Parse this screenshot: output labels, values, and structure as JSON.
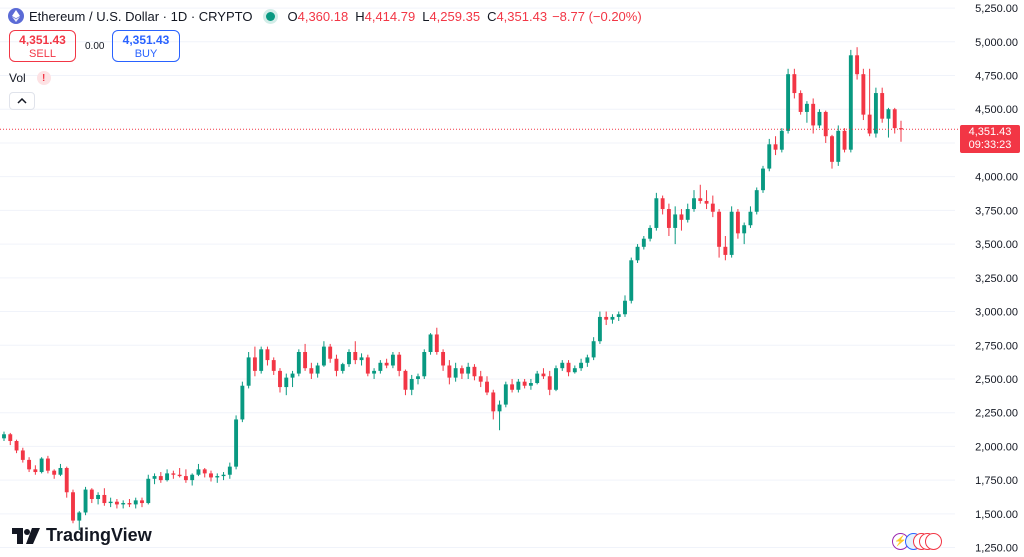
{
  "header": {
    "symbol": "Ethereum / U.S. Dollar · 1D · CRYPTO",
    "o_label": "O",
    "o_value": "4,360.18",
    "h_label": "H",
    "h_value": "4,414.79",
    "l_label": "L",
    "l_value": "4,259.35",
    "c_label": "C",
    "c_value": "4,351.43",
    "change": "−8.77 (−0.20%)",
    "status_color": "#089981",
    "coin_icon": "ethereum-icon"
  },
  "trade": {
    "sell_price": "4,351.43",
    "sell_label": "SELL",
    "spread": "0.00",
    "buy_price": "4,351.43",
    "buy_label": "BUY"
  },
  "indicator": {
    "label": "Vol",
    "warning": "!"
  },
  "price_tag": {
    "price": "4,351.43",
    "countdown": "09:33:23"
  },
  "brand": {
    "name": "TradingView"
  },
  "colors": {
    "up": "#089981",
    "down": "#f23645",
    "buy": "#2962ff"
  },
  "chart_data": {
    "type": "candlestick",
    "y_axis": {
      "ticks": [
        "5,250.00",
        "5,000.00",
        "4,750.00",
        "4,500.00",
        "4,250.00",
        "4,000.00",
        "3,750.00",
        "3,500.00",
        "3,250.00",
        "3,000.00",
        "2,750.00",
        "2,500.00",
        "2,250.00",
        "2,000.00",
        "1,750.00",
        "1,500.00",
        "1,250.00"
      ],
      "range": [
        1180,
        5310
      ],
      "position": "right"
    },
    "last_price": 4351.43,
    "candles": [
      [
        2060,
        2110,
        2040,
        2090
      ],
      [
        2090,
        2100,
        2010,
        2040
      ],
      [
        2040,
        2050,
        1950,
        1970
      ],
      [
        1970,
        1990,
        1880,
        1900
      ],
      [
        1900,
        1920,
        1810,
        1830
      ],
      [
        1830,
        1860,
        1790,
        1810
      ],
      [
        1810,
        1920,
        1800,
        1910
      ],
      [
        1910,
        1930,
        1800,
        1820
      ],
      [
        1820,
        1830,
        1760,
        1790
      ],
      [
        1790,
        1870,
        1780,
        1840
      ],
      [
        1840,
        1850,
        1620,
        1660
      ],
      [
        1660,
        1680,
        1430,
        1450
      ],
      [
        1450,
        1520,
        1380,
        1510
      ],
      [
        1510,
        1700,
        1490,
        1680
      ],
      [
        1680,
        1690,
        1580,
        1610
      ],
      [
        1610,
        1660,
        1570,
        1640
      ],
      [
        1640,
        1690,
        1560,
        1580
      ],
      [
        1580,
        1620,
        1550,
        1590
      ],
      [
        1590,
        1610,
        1540,
        1570
      ],
      [
        1570,
        1600,
        1540,
        1580
      ],
      [
        1580,
        1610,
        1550,
        1570
      ],
      [
        1570,
        1620,
        1540,
        1600
      ],
      [
        1600,
        1620,
        1550,
        1580
      ],
      [
        1580,
        1790,
        1570,
        1760
      ],
      [
        1760,
        1800,
        1720,
        1780
      ],
      [
        1780,
        1810,
        1730,
        1750
      ],
      [
        1750,
        1830,
        1740,
        1800
      ],
      [
        1800,
        1820,
        1760,
        1790
      ],
      [
        1790,
        1840,
        1770,
        1780
      ],
      [
        1780,
        1830,
        1730,
        1750
      ],
      [
        1750,
        1800,
        1710,
        1790
      ],
      [
        1790,
        1870,
        1780,
        1830
      ],
      [
        1830,
        1840,
        1770,
        1800
      ],
      [
        1800,
        1820,
        1740,
        1770
      ],
      [
        1770,
        1800,
        1730,
        1780
      ],
      [
        1780,
        1810,
        1750,
        1790
      ],
      [
        1790,
        1880,
        1760,
        1850
      ],
      [
        1850,
        2230,
        1830,
        2200
      ],
      [
        2200,
        2480,
        2180,
        2450
      ],
      [
        2450,
        2700,
        2430,
        2660
      ],
      [
        2660,
        2740,
        2520,
        2560
      ],
      [
        2560,
        2740,
        2540,
        2720
      ],
      [
        2720,
        2740,
        2600,
        2640
      ],
      [
        2640,
        2660,
        2530,
        2560
      ],
      [
        2560,
        2580,
        2400,
        2440
      ],
      [
        2440,
        2540,
        2380,
        2510
      ],
      [
        2510,
        2560,
        2440,
        2540
      ],
      [
        2540,
        2720,
        2520,
        2700
      ],
      [
        2700,
        2760,
        2560,
        2580
      ],
      [
        2580,
        2620,
        2500,
        2540
      ],
      [
        2540,
        2620,
        2510,
        2600
      ],
      [
        2600,
        2780,
        2590,
        2740
      ],
      [
        2740,
        2760,
        2620,
        2650
      ],
      [
        2650,
        2680,
        2520,
        2560
      ],
      [
        2560,
        2620,
        2540,
        2610
      ],
      [
        2610,
        2720,
        2590,
        2700
      ],
      [
        2700,
        2780,
        2610,
        2640
      ],
      [
        2640,
        2690,
        2600,
        2660
      ],
      [
        2660,
        2680,
        2520,
        2540
      ],
      [
        2540,
        2580,
        2500,
        2560
      ],
      [
        2560,
        2640,
        2540,
        2620
      ],
      [
        2620,
        2650,
        2580,
        2600
      ],
      [
        2600,
        2700,
        2580,
        2680
      ],
      [
        2680,
        2700,
        2520,
        2560
      ],
      [
        2560,
        2570,
        2380,
        2420
      ],
      [
        2420,
        2530,
        2380,
        2500
      ],
      [
        2500,
        2540,
        2460,
        2520
      ],
      [
        2520,
        2720,
        2500,
        2700
      ],
      [
        2700,
        2840,
        2680,
        2830
      ],
      [
        2830,
        2880,
        2680,
        2700
      ],
      [
        2700,
        2720,
        2560,
        2600
      ],
      [
        2600,
        2640,
        2460,
        2510
      ],
      [
        2510,
        2620,
        2480,
        2580
      ],
      [
        2580,
        2600,
        2500,
        2540
      ],
      [
        2540,
        2620,
        2500,
        2590
      ],
      [
        2590,
        2610,
        2490,
        2520
      ],
      [
        2520,
        2560,
        2440,
        2480
      ],
      [
        2480,
        2520,
        2380,
        2400
      ],
      [
        2400,
        2420,
        2200,
        2260
      ],
      [
        2260,
        2340,
        2120,
        2310
      ],
      [
        2310,
        2480,
        2290,
        2460
      ],
      [
        2460,
        2500,
        2400,
        2420
      ],
      [
        2420,
        2500,
        2400,
        2480
      ],
      [
        2480,
        2500,
        2430,
        2450
      ],
      [
        2450,
        2500,
        2420,
        2470
      ],
      [
        2470,
        2560,
        2460,
        2540
      ],
      [
        2540,
        2580,
        2500,
        2520
      ],
      [
        2520,
        2560,
        2380,
        2420
      ],
      [
        2420,
        2600,
        2410,
        2580
      ],
      [
        2580,
        2640,
        2560,
        2620
      ],
      [
        2620,
        2640,
        2520,
        2550
      ],
      [
        2550,
        2600,
        2540,
        2580
      ],
      [
        2580,
        2650,
        2560,
        2620
      ],
      [
        2620,
        2680,
        2590,
        2660
      ],
      [
        2660,
        2810,
        2640,
        2780
      ],
      [
        2780,
        3000,
        2760,
        2960
      ],
      [
        2960,
        3000,
        2900,
        2940
      ],
      [
        2940,
        2980,
        2910,
        2960
      ],
      [
        2960,
        3000,
        2930,
        2980
      ],
      [
        2980,
        3120,
        2960,
        3080
      ],
      [
        3080,
        3400,
        3060,
        3380
      ],
      [
        3380,
        3500,
        3360,
        3480
      ],
      [
        3480,
        3560,
        3460,
        3540
      ],
      [
        3540,
        3640,
        3520,
        3620
      ],
      [
        3620,
        3880,
        3600,
        3840
      ],
      [
        3840,
        3860,
        3720,
        3760
      ],
      [
        3760,
        3800,
        3560,
        3620
      ],
      [
        3620,
        3780,
        3500,
        3720
      ],
      [
        3720,
        3760,
        3600,
        3680
      ],
      [
        3680,
        3800,
        3660,
        3760
      ],
      [
        3760,
        3900,
        3740,
        3840
      ],
      [
        3840,
        3940,
        3800,
        3820
      ],
      [
        3820,
        3900,
        3760,
        3800
      ],
      [
        3800,
        3860,
        3700,
        3740
      ],
      [
        3740,
        3760,
        3400,
        3480
      ],
      [
        3480,
        3560,
        3380,
        3420
      ],
      [
        3420,
        3780,
        3400,
        3740
      ],
      [
        3740,
        3760,
        3540,
        3580
      ],
      [
        3580,
        3660,
        3500,
        3640
      ],
      [
        3640,
        3780,
        3620,
        3740
      ],
      [
        3740,
        3920,
        3720,
        3900
      ],
      [
        3900,
        4080,
        3880,
        4060
      ],
      [
        4060,
        4280,
        4040,
        4240
      ],
      [
        4240,
        4300,
        4160,
        4200
      ],
      [
        4200,
        4360,
        4180,
        4340
      ],
      [
        4340,
        4800,
        4320,
        4760
      ],
      [
        4760,
        4800,
        4580,
        4620
      ],
      [
        4620,
        4640,
        4460,
        4480
      ],
      [
        4480,
        4560,
        4400,
        4540
      ],
      [
        4540,
        4580,
        4320,
        4380
      ],
      [
        4380,
        4500,
        4360,
        4480
      ],
      [
        4480,
        4490,
        4250,
        4300
      ],
      [
        4300,
        4310,
        4060,
        4110
      ],
      [
        4110,
        4380,
        4080,
        4340
      ],
      [
        4340,
        4360,
        4180,
        4200
      ],
      [
        4200,
        4940,
        4180,
        4900
      ],
      [
        4900,
        4960,
        4720,
        4760
      ],
      [
        4760,
        4800,
        4420,
        4460
      ],
      [
        4460,
        4800,
        4300,
        4320
      ],
      [
        4320,
        4660,
        4290,
        4620
      ],
      [
        4620,
        4660,
        4400,
        4430
      ],
      [
        4430,
        4510,
        4290,
        4500
      ],
      [
        4500,
        4510,
        4320,
        4360
      ],
      [
        4360,
        4415,
        4259,
        4351
      ]
    ]
  }
}
